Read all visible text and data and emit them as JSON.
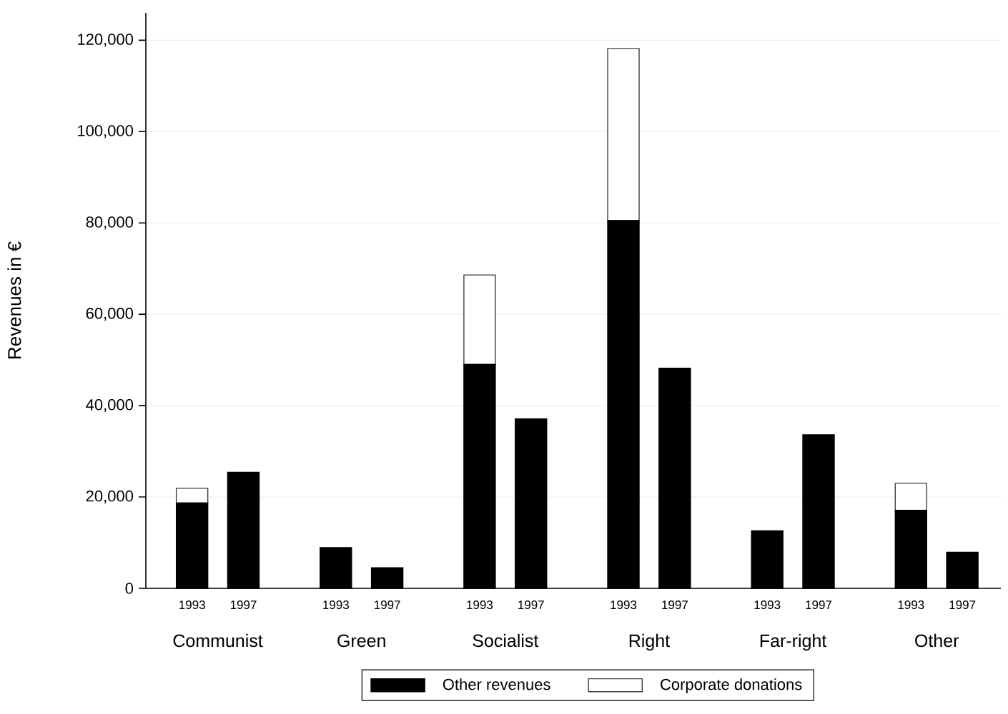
{
  "chart_data": {
    "type": "bar",
    "stacked": true,
    "ylabel": "Revenues in €",
    "categories": [
      "1993",
      "1997",
      "1993",
      "1997",
      "1993",
      "1997",
      "1993",
      "1997",
      "1993",
      "1997",
      "1993",
      "1997"
    ],
    "annotations": [
      "Communist",
      "Green",
      "Socialist",
      "Right",
      "Far-right",
      "Other"
    ],
    "series": [
      {
        "name": "Other revenues",
        "color": "#000000",
        "values": [
          18700,
          25400,
          8900,
          4500,
          49000,
          37100,
          80500,
          48200,
          12600,
          33600,
          17100,
          7900
        ]
      },
      {
        "name": "Corporate donations",
        "color": "#ffffff",
        "values": [
          3200,
          null,
          null,
          null,
          19600,
          null,
          37700,
          null,
          null,
          null,
          5900,
          null
        ]
      }
    ],
    "ylim": [
      0,
      126000
    ],
    "yticks": [
      0,
      {
        "value": 20000,
        "label": "20,000"
      },
      {
        "value": 40000,
        "label": "40,000"
      },
      {
        "value": 60000,
        "label": "60,000"
      },
      {
        "value": 80000,
        "label": "80,000"
      },
      {
        "value": 100000,
        "label": "100,000"
      },
      {
        "value": 120000,
        "label": "120,000"
      }
    ],
    "grid": "y",
    "legend": "bottom"
  }
}
